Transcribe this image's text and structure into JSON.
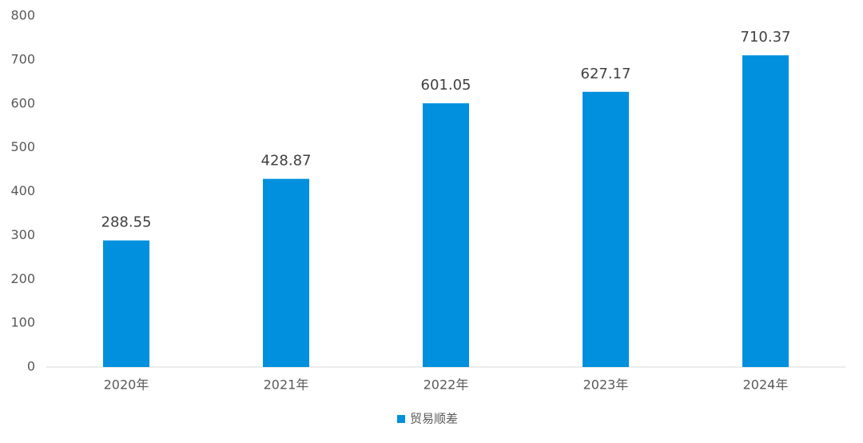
{
  "chart_data": {
    "type": "bar",
    "categories": [
      "2020年",
      "2021年",
      "2022年",
      "2023年",
      "2024年"
    ],
    "series": [
      {
        "name": "贸易顺差",
        "color": "#0090dd",
        "values": [
          288.55,
          428.87,
          601.05,
          627.17,
          710.37
        ]
      }
    ],
    "ylim": [
      0,
      800
    ],
    "yticks": [
      0,
      100,
      200,
      300,
      400,
      500,
      600,
      700,
      800
    ],
    "grid": false,
    "data_labels": true,
    "legend": "bottom"
  }
}
